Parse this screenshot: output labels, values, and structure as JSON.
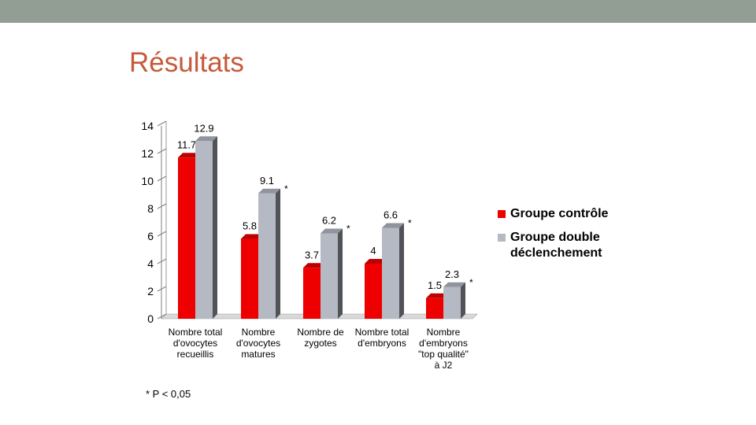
{
  "slide": {
    "title": "Résultats",
    "footnote": "* P < 0,05",
    "band_color": "#929e94",
    "title_color": "#c65a3a"
  },
  "chart_data": {
    "type": "bar",
    "title": "",
    "xlabel": "",
    "ylabel": "",
    "ylim": [
      0,
      14
    ],
    "yticks": [
      0,
      2,
      4,
      6,
      8,
      10,
      12,
      14
    ],
    "grid": false,
    "legend_position": "right",
    "categories": [
      [
        "Nombre total",
        "d'ovocytes",
        "recueillis"
      ],
      [
        "Nombre",
        "d'ovocytes",
        "matures"
      ],
      [
        "Nombre de",
        "zygotes"
      ],
      [
        "Nombre total",
        "d'embryons"
      ],
      [
        "Nombre",
        "d'embryons",
        "\"top qualité\"",
        "à J2"
      ]
    ],
    "series": [
      {
        "name": "Groupe contrôle",
        "color": "#ee0000",
        "values": [
          11.7,
          5.8,
          3.7,
          4,
          1.5
        ]
      },
      {
        "name": "Groupe double déclenchement",
        "color": "#b4b9c3",
        "values": [
          12.9,
          9.1,
          6.2,
          6.6,
          2.3
        ]
      }
    ],
    "value_labels": [
      [
        "11.7",
        "5.8",
        "3.7",
        "4",
        "1.5"
      ],
      [
        "12.9",
        "9.1",
        "6.2",
        "6.6",
        "2.3"
      ]
    ],
    "significance_markers": [
      "",
      "*",
      "*",
      "*",
      "*"
    ]
  }
}
